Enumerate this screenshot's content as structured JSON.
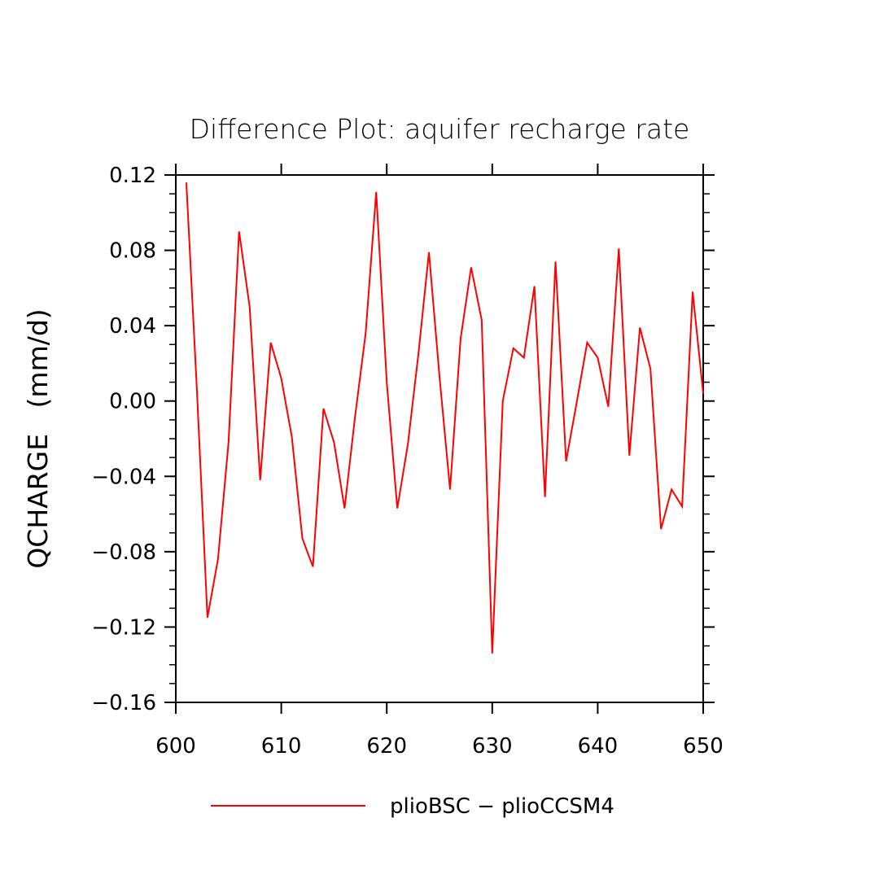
{
  "chart_data": {
    "type": "line",
    "title": "Difference Plot: aquifer recharge rate",
    "xlabel": "",
    "ylabel": "QCHARGE   (mm/d)",
    "xlim": [
      600,
      650
    ],
    "ylim": [
      -0.16,
      0.12
    ],
    "xticks": [
      600,
      610,
      620,
      630,
      640,
      650
    ],
    "xtick_labels": [
      "600",
      "610",
      "620",
      "630",
      "640",
      "650"
    ],
    "yticks": [
      -0.16,
      -0.12,
      -0.08,
      -0.04,
      0.0,
      0.04,
      0.08,
      0.12
    ],
    "ytick_labels": [
      "−0.16",
      "−0.12",
      "−0.08",
      "−0.04",
      "0.00",
      "0.04",
      "0.08",
      "0.12"
    ],
    "grid": false,
    "legend_placement": "bottom-center",
    "series": [
      {
        "name": "plioBSC − plioCCSM4",
        "color": "#ff0000",
        "x": [
          601,
          602,
          603,
          604,
          605,
          606,
          607,
          608,
          609,
          610,
          611,
          612,
          613,
          614,
          615,
          616,
          617,
          618,
          619,
          620,
          621,
          622,
          623,
          624,
          625,
          626,
          627,
          628,
          629,
          630,
          631,
          632,
          633,
          634,
          635,
          636,
          637,
          638,
          639,
          640,
          641,
          642,
          643,
          644,
          645,
          646,
          647,
          648,
          649,
          650
        ],
        "values": [
          0.116,
          0.006,
          -0.115,
          -0.084,
          -0.022,
          0.09,
          0.05,
          -0.042,
          0.031,
          0.012,
          -0.019,
          -0.073,
          -0.088,
          -0.004,
          -0.022,
          -0.057,
          -0.008,
          0.036,
          0.111,
          0.01,
          -0.057,
          -0.023,
          0.025,
          0.079,
          0.013,
          -0.047,
          0.033,
          0.071,
          0.043,
          -0.134,
          0.0,
          0.028,
          0.023,
          0.061,
          -0.051,
          0.074,
          -0.032,
          -0.001,
          0.031,
          0.023,
          -0.003,
          0.081,
          -0.029,
          0.039,
          0.017,
          -0.068,
          -0.047,
          -0.056,
          0.058,
          0.004
        ]
      }
    ]
  }
}
